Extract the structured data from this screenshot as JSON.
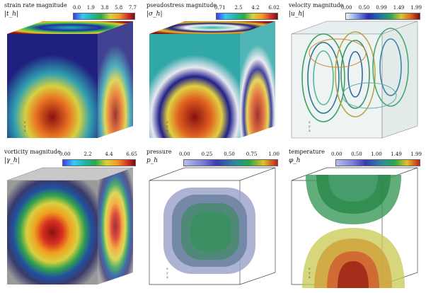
{
  "panels": [
    {
      "title": "strain rate magnitude",
      "symbol": "|t_h|",
      "ticks": [
        "0.0",
        "1.9",
        "3.8",
        "5.8",
        "7.7"
      ]
    },
    {
      "title": "pseudostress magnitude",
      "symbol": "|σ_h|",
      "ticks": [
        "0.71",
        "2.5",
        "4.2",
        "6.02"
      ]
    },
    {
      "title": "velocity magnitude",
      "symbol": "|u_h|",
      "ticks": [
        "0.00",
        "0.50",
        "0.99",
        "1.49",
        "1.99"
      ]
    },
    {
      "title": "vorticity magnitude",
      "symbol": "|γ_h|",
      "ticks": [
        "0.00",
        "2.2",
        "4.4",
        "6.65"
      ]
    },
    {
      "title": "pressure",
      "symbol": "p_h",
      "ticks": [
        "0.00",
        "0.25",
        "0.50",
        "0.75",
        "1.00"
      ]
    },
    {
      "title": "temperature",
      "symbol": "φ_h",
      "ticks": [
        "0.00",
        "0.50",
        "1.00",
        "1.49",
        "1.99"
      ]
    }
  ],
  "axis_labels": [
    "z",
    "y",
    "x"
  ]
}
